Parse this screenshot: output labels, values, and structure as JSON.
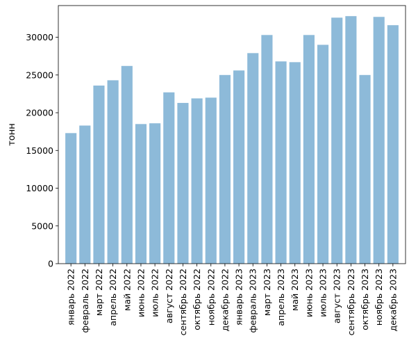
{
  "chart_data": {
    "type": "bar",
    "ylabel": "тонн",
    "ylim": [
      0,
      34200
    ],
    "yticks": [
      0,
      5000,
      10000,
      15000,
      20000,
      25000,
      30000
    ],
    "bar_color": "#8dbad9",
    "categories": [
      "январь 2022",
      "февраль 2022",
      "март 2022",
      "апрель 2022",
      "май 2022",
      "июнь 2022",
      "июль 2022",
      "август 2022",
      "сентябрь 2022",
      "октябрь 2022",
      "ноябрь 2022",
      "декабрь 2022",
      "январь 2023",
      "февраль 2023",
      "март 2023",
      "апрель 2023",
      "май 2023",
      "июнь 2023",
      "июль 2023",
      "август 2023",
      "сентябрь 2023",
      "октябрь 2023",
      "ноябрь 2023",
      "декабрь 2023"
    ],
    "values": [
      17300,
      18300,
      23600,
      24300,
      26200,
      18500,
      18600,
      22700,
      21300,
      21900,
      22000,
      25000,
      25600,
      27900,
      30300,
      26800,
      26700,
      30300,
      29000,
      32600,
      32800,
      25000,
      32700,
      31600
    ]
  }
}
